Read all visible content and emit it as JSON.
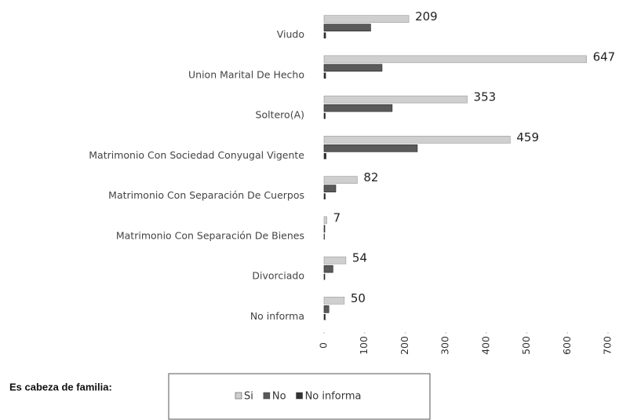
{
  "chart_data": {
    "type": "bar",
    "orientation": "horizontal",
    "categories": [
      "Viudo",
      "Union Marital De Hecho",
      "Soltero(A)",
      "Matrimonio Con Sociedad Conyugal Vigente",
      "Matrimonio Con Separación De Cuerpos",
      "Matrimonio Con Separación De Bienes",
      "Divorciado",
      "No informa"
    ],
    "series": [
      {
        "name": "Si",
        "color": "#cfcfcf",
        "values": [
          209,
          647,
          353,
          459,
          82,
          7,
          54,
          50
        ]
      },
      {
        "name": "No",
        "color": "#5a5a5a",
        "values": [
          115,
          143,
          168,
          230,
          29,
          2,
          22,
          12
        ]
      },
      {
        "name": "No informa",
        "color": "#333333",
        "values": [
          4,
          4,
          3,
          5,
          3,
          1,
          2,
          3
        ]
      }
    ],
    "xlim": [
      0,
      700
    ],
    "xticks": [
      0,
      100,
      200,
      300,
      400,
      500,
      600,
      700
    ],
    "grid": false,
    "legend_title": "Es cabeza de familia:",
    "legend_position": "bottom"
  }
}
